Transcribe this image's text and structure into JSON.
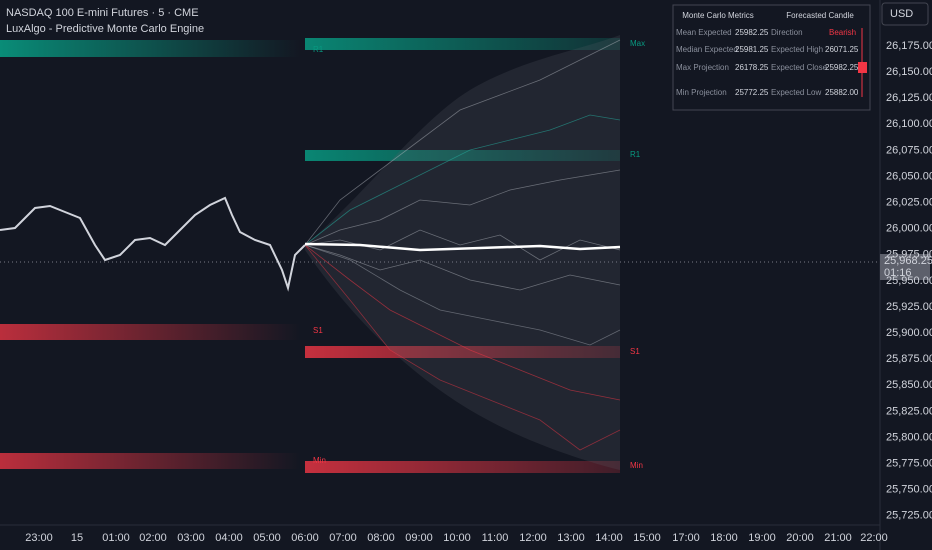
{
  "header": {
    "title": "NASDAQ 100 E-mini Futures · 5 · CME",
    "indicator": "LuxAlgo - Predictive Monte Carlo Engine"
  },
  "currency": "USD",
  "price_axis": [
    "26,175.00",
    "26,150.00",
    "26,125.00",
    "26,100.00",
    "26,075.00",
    "26,050.00",
    "26,025.00",
    "26,000.00",
    "25,975.00",
    "25,950.00",
    "25,925.00",
    "25,900.00",
    "25,875.00",
    "25,850.00",
    "25,825.00",
    "25,800.00",
    "25,775.00",
    "25,750.00",
    "25,725.00"
  ],
  "current_price": {
    "price": "25,968.25",
    "countdown": "01:16"
  },
  "time_axis": [
    "23:00",
    "15",
    "01:00",
    "02:00",
    "03:00",
    "04:00",
    "05:00",
    "06:00",
    "07:00",
    "08:00",
    "09:00",
    "10:00",
    "11:00",
    "12:00",
    "13:00",
    "14:00",
    "15:00",
    "17:00",
    "18:00",
    "19:00",
    "20:00",
    "21:00",
    "22:00"
  ],
  "levels": {
    "max": "Max",
    "r1": "R1",
    "s1": "S1",
    "min": "Min"
  },
  "table": {
    "headers": [
      "Monte Carlo Metrics",
      "Forecasted Candle"
    ],
    "rows": [
      [
        "Mean Expected",
        "25982.25",
        "Direction",
        "Bearish"
      ],
      [
        "Median Expected",
        "25981.25",
        "Expected High",
        "26071.25"
      ],
      [
        "Max Projection",
        "26178.25",
        "Expected Close",
        "25982.25"
      ],
      [
        "Min Projection",
        "25772.25",
        "Expected Low",
        "25882.00"
      ]
    ]
  }
}
